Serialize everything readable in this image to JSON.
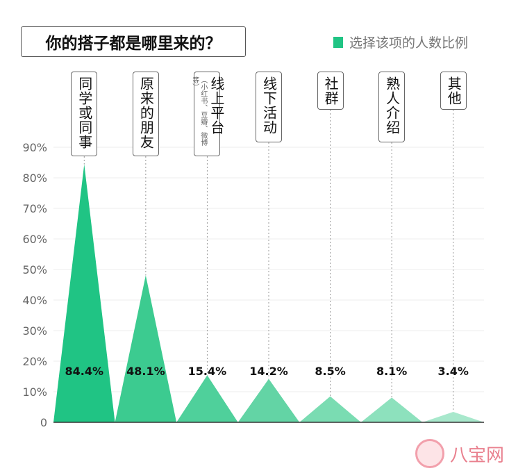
{
  "chart_data": {
    "type": "area",
    "title": "你的搭子都是哪里来的？",
    "legend": [
      "选择该项的人数比例"
    ],
    "legend_position": "top-right",
    "categories": [
      "同学或同事",
      "原来的朋友",
      "线上平台",
      "线下活动",
      "社群",
      "熟人介绍",
      "其他"
    ],
    "category_notes": [
      "",
      "",
      "（小红书、豆瓣、微博等）",
      "",
      "",
      "",
      ""
    ],
    "values": [
      84.4,
      48.1,
      15.4,
      14.2,
      8.5,
      8.1,
      3.4
    ],
    "data_labels": [
      "84.4%",
      "48.1%",
      "15.4%",
      "14.2%",
      "8.5%",
      "8.1%",
      "3.4%"
    ],
    "yticks": [
      "0",
      "10%",
      "20%",
      "30%",
      "40%",
      "50%",
      "60%",
      "70%",
      "80%",
      "90%"
    ],
    "ylim": [
      0,
      90
    ],
    "grid": true,
    "colors": [
      "#20c484",
      "#3ccb90",
      "#4fd09b",
      "#63d4a5",
      "#7adcb2",
      "#8de1bd",
      "#a8e8cc"
    ]
  },
  "watermark": "八宝网"
}
